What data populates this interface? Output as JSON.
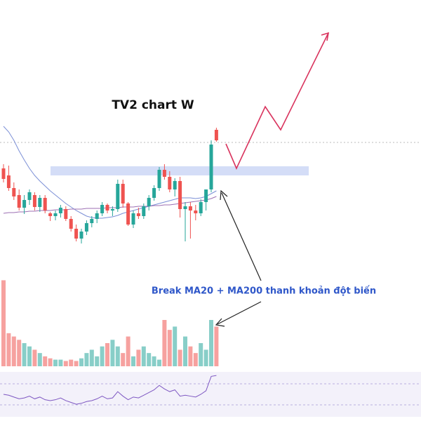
{
  "chart_data": {
    "type": "candlestick",
    "title": "TV2 chart W",
    "annotation": "Break MA20 + MA200 thanh khoản đột biến",
    "up_color": "#26a69a",
    "down_color": "#ef5350",
    "ylim": [
      160,
      540
    ],
    "open": [
      300,
      290,
      272,
      262,
      244,
      255,
      262,
      245,
      258,
      236,
      232,
      236,
      242,
      228,
      214,
      200,
      210,
      222,
      228,
      236,
      248,
      240,
      242,
      278,
      250,
      220,
      236,
      232,
      246,
      258,
      272,
      298,
      288,
      270,
      282,
      242,
      246,
      240,
      236,
      252,
      270,
      355
    ],
    "high": [
      306,
      304,
      280,
      270,
      262,
      270,
      266,
      262,
      262,
      238,
      240,
      248,
      246,
      232,
      220,
      214,
      226,
      232,
      240,
      252,
      250,
      246,
      284,
      284,
      252,
      240,
      244,
      250,
      262,
      276,
      302,
      306,
      296,
      286,
      288,
      252,
      252,
      248,
      256,
      270,
      340,
      358
    ],
    "low": [
      280,
      268,
      255,
      240,
      235,
      248,
      240,
      238,
      236,
      225,
      226,
      230,
      225,
      210,
      196,
      193,
      205,
      216,
      222,
      232,
      236,
      232,
      238,
      244,
      218,
      215,
      228,
      228,
      240,
      254,
      268,
      284,
      266,
      260,
      230,
      196,
      200,
      226,
      232,
      240,
      266,
      338
    ],
    "close": [
      285,
      272,
      260,
      244,
      255,
      266,
      245,
      258,
      240,
      232,
      236,
      244,
      228,
      214,
      200,
      210,
      222,
      228,
      236,
      248,
      240,
      242,
      278,
      250,
      220,
      236,
      232,
      246,
      258,
      272,
      298,
      288,
      270,
      282,
      242,
      246,
      240,
      236,
      252,
      270,
      334,
      340
    ],
    "ma_lines": [
      {
        "color": "#7b8fd6",
        "values": [
          360,
          352,
          340,
          325,
          312,
          300,
          290,
          282,
          275,
          268,
          262,
          256,
          250,
          245,
          240,
          236,
          232,
          230,
          229,
          229,
          230,
          231,
          233,
          236,
          238,
          240,
          242,
          244,
          246,
          248,
          250,
          252,
          254,
          256,
          258,
          258,
          258,
          257,
          258,
          260,
          264,
          268
        ]
      },
      {
        "color": "#9c6fb3",
        "values": [
          236,
          237,
          237,
          238,
          238,
          239,
          239,
          240,
          240,
          240,
          241,
          241,
          241,
          242,
          242,
          242,
          243,
          243,
          243,
          243,
          244,
          244,
          244,
          245,
          245,
          245,
          246,
          246,
          246,
          247,
          247,
          248,
          248,
          249,
          250,
          251,
          252,
          253,
          254,
          255,
          257,
          260
        ]
      }
    ],
    "volume": {
      "ylim": [
        0,
        140
      ],
      "values": [
        130,
        50,
        45,
        40,
        35,
        30,
        25,
        20,
        15,
        12,
        10,
        10,
        8,
        10,
        8,
        12,
        20,
        25,
        15,
        30,
        35,
        40,
        30,
        20,
        45,
        15,
        25,
        30,
        20,
        15,
        10,
        70,
        55,
        60,
        25,
        45,
        30,
        20,
        35,
        25,
        70,
        60
      ]
    },
    "rsi": {
      "color": "#7e57c2",
      "ylim": [
        0,
        100
      ],
      "values": [
        50,
        48,
        44,
        40,
        42,
        46,
        40,
        44,
        38,
        36,
        38,
        42,
        36,
        32,
        28,
        30,
        34,
        36,
        40,
        46,
        40,
        42,
        56,
        46,
        38,
        44,
        42,
        48,
        54,
        60,
        70,
        62,
        56,
        60,
        46,
        48,
        46,
        44,
        50,
        58,
        90,
        92
      ]
    }
  }
}
